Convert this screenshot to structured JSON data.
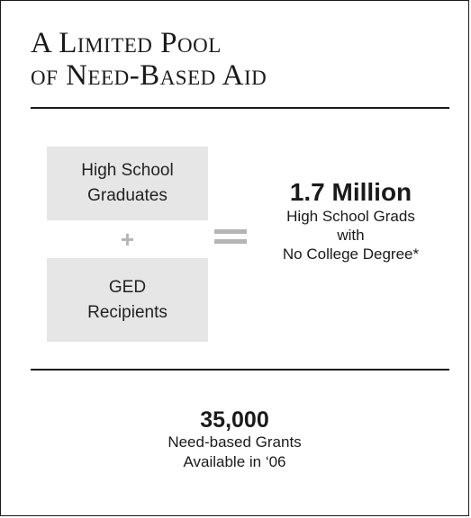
{
  "title": {
    "line1": "A Limited Pool",
    "line2": "of Need-Based Aid"
  },
  "inputs": {
    "box1": [
      "High School",
      "Graduates"
    ],
    "operator_plus": "+",
    "box2": [
      "GED",
      "Recipients"
    ]
  },
  "result": {
    "value": "1.7 Million",
    "lines": [
      "High School Grads",
      "with",
      "No College Degree*"
    ]
  },
  "grants": {
    "value": "35,000",
    "lines": [
      "Need-based Grants",
      "Available in ‘06"
    ]
  },
  "colors": {
    "box_fill": "#e6e6e6",
    "operator": "#b5b5b5",
    "text": "#1a1a1a"
  }
}
